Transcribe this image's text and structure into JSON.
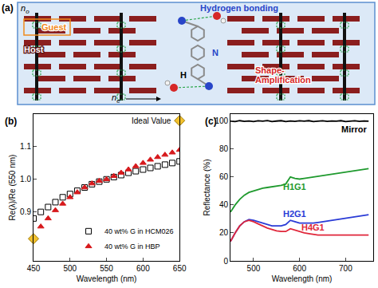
{
  "diagram": {
    "label": "(a)",
    "ordinary_index": {
      "symbol": "n",
      "subscript": "o"
    },
    "extraordinary_index": {
      "symbol": "n",
      "subscript": "e"
    },
    "guest_label": "Guest",
    "host_label": "Host",
    "hydrogen_bonding_label": "Hydrogen bonding",
    "shape_amplification_label": [
      "Shape-",
      "Amplification"
    ],
    "atom_labels": [
      "H",
      "N"
    ]
  },
  "chart_data": [
    {
      "type": "scatter",
      "title": "(b)",
      "x_label": "Wavelength (nm)",
      "y_label": "Re(λ)/Re (550 nm)",
      "x": [
        450,
        460,
        470,
        480,
        490,
        500,
        510,
        520,
        530,
        540,
        550,
        560,
        570,
        580,
        590,
        600,
        610,
        620,
        630,
        640,
        650
      ],
      "series": [
        {
          "name": "40 wt% G in HCM026",
          "color": "#000000",
          "marker": "square-open",
          "line_style": "none",
          "values": [
            0.88,
            0.9,
            0.915,
            0.93,
            0.945,
            0.955,
            0.965,
            0.975,
            0.985,
            0.993,
            1.0,
            1.007,
            1.013,
            1.02,
            1.025,
            1.03,
            1.035,
            1.04,
            1.045,
            1.05,
            1.055
          ]
        },
        {
          "name": "40 wt% G in HBP",
          "color": "#d7191c",
          "marker": "triangle-up",
          "line_style": "none",
          "values": [
            0.82,
            0.855,
            0.88,
            0.905,
            0.925,
            0.945,
            0.96,
            0.975,
            0.987,
            0.995,
            1.0,
            1.01,
            1.02,
            1.03,
            1.04,
            1.05,
            1.06,
            1.068,
            1.075,
            1.082,
            1.09
          ]
        }
      ],
      "annotations": [
        {
          "text": "Ideal Value",
          "x": [
            450,
            650
          ],
          "y": [
            0.818,
            1.18
          ],
          "color": "#f2c12e",
          "marker": "diamond"
        }
      ],
      "xlim": [
        450,
        650
      ],
      "ylim": [
        0.75,
        1.2
      ],
      "xticks": [
        450,
        500,
        550,
        600,
        650
      ],
      "yticks": [
        0.9,
        {
          "value": 1.0,
          "label": "1.0"
        },
        1.1
      ],
      "legend": "lower right",
      "grid": false
    },
    {
      "type": "line",
      "title": "(c)",
      "x_label": "Wavelength (nm)",
      "y_label": "Reflectance (%)",
      "x": [
        450,
        460,
        470,
        480,
        490,
        500,
        510,
        520,
        530,
        540,
        550,
        560,
        570,
        580,
        590,
        600,
        610,
        620,
        630,
        640,
        650,
        660,
        670,
        680,
        690,
        700,
        710,
        720,
        730,
        740,
        750
      ],
      "series": [
        {
          "name": "Mirror",
          "color": "#000000",
          "line_style": "solid",
          "values": [
            100,
            99.6,
            100.3,
            99.8,
            100.1,
            99.7,
            100.2,
            99.9,
            100.4,
            99.6,
            100,
            100.3,
            99.7,
            100.1,
            99.8,
            100.2,
            99.9,
            100.3,
            99.7,
            100,
            100.2,
            99.8,
            100.1,
            99.9,
            100.3,
            99.7,
            100,
            100.2,
            99.8,
            100.1,
            99.9
          ]
        },
        {
          "name": "H1G1",
          "color": "#1f9a2e",
          "line_style": "solid",
          "values": [
            35,
            40,
            44,
            47,
            49,
            50,
            51,
            52,
            52.5,
            53,
            53.5,
            54,
            55,
            60,
            59,
            58.5,
            59,
            59.5,
            60,
            60.5,
            61,
            61.5,
            62,
            62.5,
            63,
            63.5,
            64,
            64.5,
            65,
            65.5,
            66
          ]
        },
        {
          "name": "H2G1",
          "color": "#2a3bd6",
          "line_style": "solid",
          "values": [
            14,
            20,
            25,
            28,
            29.5,
            29,
            28,
            27,
            26,
            25,
            25,
            25,
            26,
            29,
            28,
            27,
            27,
            27,
            27,
            27.5,
            28,
            28.5,
            29,
            29.5,
            30,
            30.5,
            31,
            31.5,
            32,
            32.5,
            33
          ]
        },
        {
          "name": "H4G1",
          "color": "#e0263a",
          "line_style": "solid",
          "values": [
            14,
            20,
            25,
            28,
            29,
            28,
            26.5,
            25,
            23.5,
            22.5,
            21.5,
            21,
            21,
            23,
            22,
            21,
            20,
            19.5,
            19,
            18.5,
            18.5,
            18.5,
            18.5,
            18.5,
            18.5,
            18.5,
            18.5,
            18.5,
            18.5,
            18.5,
            18.5
          ]
        }
      ],
      "xlim": [
        450,
        760
      ],
      "ylim": [
        0,
        105
      ],
      "xticks": [
        500,
        600,
        700
      ],
      "yticks": [
        0,
        20,
        40,
        60,
        80,
        100
      ],
      "grid": false
    }
  ]
}
